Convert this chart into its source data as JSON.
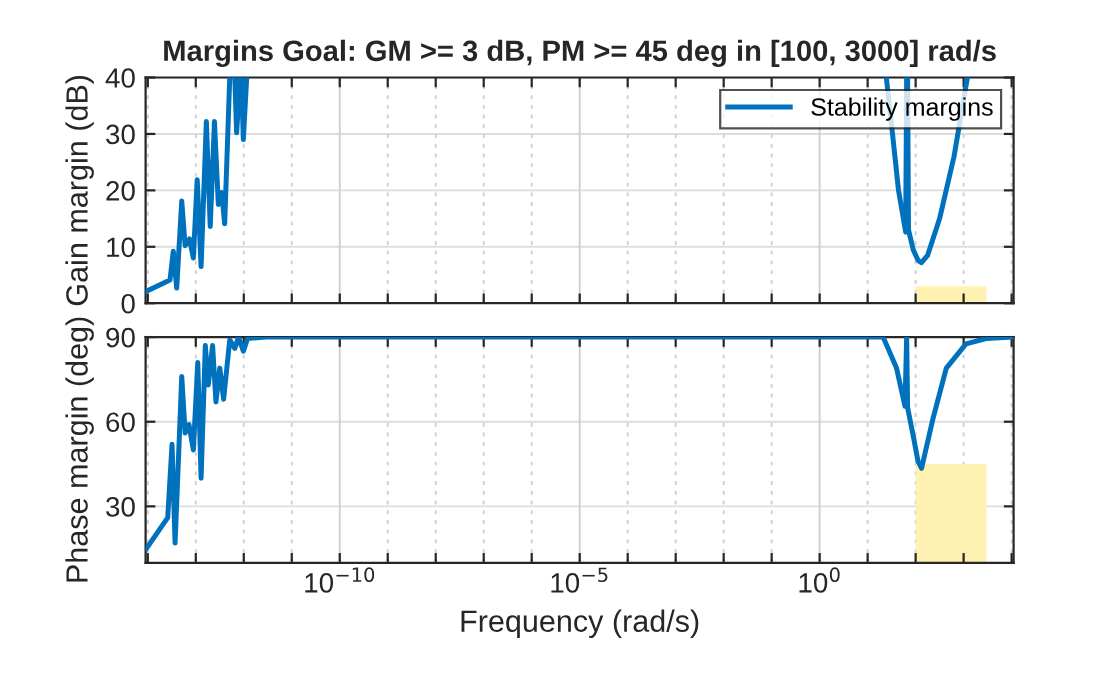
{
  "chart_data": [
    {
      "type": "line",
      "title": "Margins Goal: GM >= 3 dB, PM >= 45 deg in [100, 3000] rad/s",
      "ylabel": "Gain margin (dB)",
      "log": "x",
      "grid": true,
      "legend": "top right",
      "tick_labels": "y",
      "xlim": [
        9e-15,
        11000
      ],
      "ylim": [
        0,
        40
      ],
      "yticks": [
        0,
        10,
        20,
        30,
        40
      ],
      "xticks": [
        {
          "value": 1e-14,
          "label": null
        },
        {
          "value": 1e-13,
          "label": null
        },
        {
          "value": 1e-12,
          "label": null
        },
        {
          "value": 1e-11,
          "label": null
        },
        {
          "value": 1e-10,
          "label": null
        },
        {
          "value": 1e-09,
          "label": null
        },
        {
          "value": 1e-08,
          "label": null
        },
        {
          "value": 1e-07,
          "label": null
        },
        {
          "value": 1e-06,
          "label": null
        },
        {
          "value": 1e-05,
          "label": null
        },
        {
          "value": 0.0001,
          "label": null
        },
        {
          "value": 0.001,
          "label": null
        },
        {
          "value": 0.01,
          "label": null
        },
        {
          "value": 0.1,
          "label": null
        },
        {
          "value": 1,
          "label": null
        },
        {
          "value": 10,
          "label": null
        },
        {
          "value": 100,
          "label": null
        },
        {
          "value": 1000,
          "label": null
        },
        {
          "value": 10000,
          "label": null
        }
      ],
      "series": [
        {
          "type": "area",
          "color": "#fff0a8",
          "x": [
            100,
            3000
          ],
          "values": [
            3,
            3
          ]
        },
        {
          "name": "Stability margins",
          "color": "#0072bd",
          "x": [
            9.3e-15,
            2.9e-14,
            3.4e-14,
            4e-14,
            5.1e-14,
            6e-14,
            7.4e-14,
            8.9e-14,
            1.07e-13,
            1.29e-13,
            1.66e-13,
            2e-13,
            2.45e-13,
            2.95e-13,
            3.47e-13,
            4e-13,
            5.1e-13,
            5.8e-13,
            6.5e-13,
            7.1e-13,
            8.3e-13,
            8.6e-13,
            8.9e-13,
            9.8e-13,
            1.15e-12,
            1e-05,
            24.5,
            33,
            44,
            62,
            65,
            66.5,
            68,
            71,
            89,
            112,
            132,
            178,
            316,
            631,
            1200
          ],
          "values": [
            2.1,
            4.1,
            9.2,
            2.7,
            18.1,
            10.2,
            11.4,
            8.0,
            21.9,
            6.5,
            32.2,
            13.6,
            32.2,
            17.5,
            19.6,
            14.1,
            40,
            null,
            40,
            30.2,
            40,
            null,
            40,
            29.0,
            40,
            null,
            40,
            30,
            20,
            12.6,
            40,
            null,
            40,
            13,
            9.5,
            7.6,
            7.2,
            8.5,
            15,
            26,
            40
          ]
        }
      ]
    },
    {
      "type": "line",
      "xlabel": "Frequency (rad/s)",
      "ylabel": "Phase margin (deg)",
      "log": "x",
      "grid": true,
      "xlim": [
        9e-15,
        11000
      ],
      "ylim": [
        10,
        90
      ],
      "yticks": [
        30,
        60,
        90
      ],
      "xticks": [
        {
          "value": 1e-14,
          "label": null
        },
        {
          "value": 1e-13,
          "label": null
        },
        {
          "value": 1e-12,
          "label": null
        },
        {
          "value": 1e-11,
          "label": null
        },
        {
          "value": 1e-10,
          "label": "10$^{−10}$"
        },
        {
          "value": 1e-09,
          "label": null
        },
        {
          "value": 1e-08,
          "label": null
        },
        {
          "value": 1e-07,
          "label": null
        },
        {
          "value": 1e-06,
          "label": null
        },
        {
          "value": 1e-05,
          "label": "10$^{−5}$"
        },
        {
          "value": 0.0001,
          "label": null
        },
        {
          "value": 0.001,
          "label": null
        },
        {
          "value": 0.01,
          "label": null
        },
        {
          "value": 0.1,
          "label": null
        },
        {
          "value": 1,
          "label": "10$^{0}$"
        },
        {
          "value": 10,
          "label": null
        },
        {
          "value": 100,
          "label": null
        },
        {
          "value": 1000,
          "label": null
        },
        {
          "value": 10000,
          "label": null
        }
      ],
      "series": [
        {
          "type": "area",
          "color": "#fff0a8",
          "x": [
            100,
            3000
          ],
          "values": [
            45,
            45
          ]
        },
        {
          "color": "#0072bd",
          "x": [
            9.3e-15,
            2.6e-14,
            3.2e-14,
            3.7e-14,
            5.1e-14,
            6e-14,
            7.2e-14,
            8.9e-14,
            1.1e-13,
            1.29e-13,
            1.58e-13,
            1.82e-13,
            2.24e-13,
            2.63e-13,
            3.16e-13,
            3.8e-13,
            5.1e-13,
            6.5e-13,
            7.8e-13,
            9.8e-13,
            1.2e-12,
            3e-12,
            21,
            40,
            60,
            65,
            68,
            89,
            112,
            133,
            229,
            436,
            1120,
            2950,
            10500
          ],
          "values": [
            15,
            26,
            52,
            17,
            76,
            56,
            59,
            50,
            81,
            40,
            87,
            73,
            87,
            67,
            79,
            68,
            89,
            86,
            90,
            85,
            89.5,
            90,
            90,
            79,
            65.5,
            90,
            65,
            55,
            46,
            43.5,
            61,
            79,
            87.6,
            89.5,
            90
          ]
        }
      ]
    }
  ]
}
